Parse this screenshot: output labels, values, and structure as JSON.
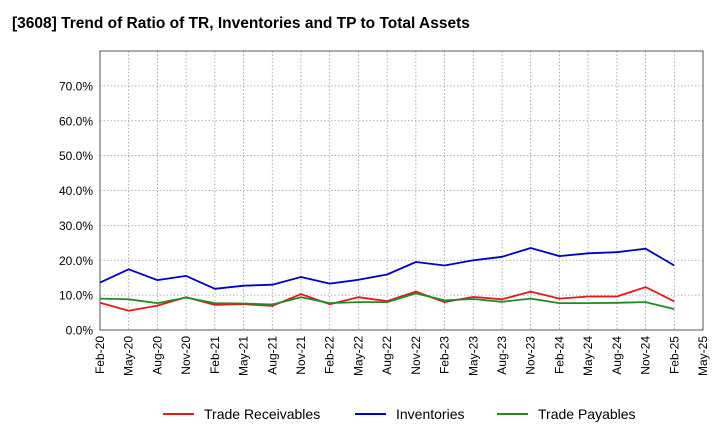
{
  "chart_data": {
    "type": "line",
    "title": "[3608]  Trend of Ratio of TR, Inventories and TP to Total Assets",
    "xlabel": "",
    "ylabel": "",
    "y_unit": "%",
    "ylim": [
      0,
      0.8
    ],
    "yticks": [
      0.0,
      0.1,
      0.2,
      0.3,
      0.4,
      0.5,
      0.6,
      0.7
    ],
    "ytick_labels": [
      "0.0%",
      "10.0%",
      "20.0%",
      "30.0%",
      "40.0%",
      "50.0%",
      "60.0%",
      "70.0%"
    ],
    "grid": true,
    "legend_position": "bottom",
    "x_tick_labels": [
      "Feb-20",
      "May-20",
      "Aug-20",
      "Nov-20",
      "Feb-21",
      "May-21",
      "Aug-21",
      "Nov-21",
      "Feb-22",
      "May-22",
      "Aug-22",
      "Nov-22",
      "Feb-23",
      "May-23",
      "Aug-23",
      "Nov-23",
      "Feb-24",
      "May-24",
      "Aug-24",
      "Nov-24",
      "Feb-25",
      "May-25"
    ],
    "x": [
      "Feb-20",
      "May-20",
      "Aug-20",
      "Nov-20",
      "Feb-21",
      "May-21",
      "Aug-21",
      "Nov-21",
      "Feb-22",
      "May-22",
      "Aug-22",
      "Nov-22",
      "Feb-23",
      "May-23",
      "Aug-23",
      "Nov-23",
      "Feb-24",
      "May-24",
      "Aug-24",
      "Nov-24",
      "Feb-25"
    ],
    "series": [
      {
        "name": "Trade Receivables",
        "color": "#e41a1c",
        "values": [
          0.078,
          0.055,
          0.07,
          0.094,
          0.072,
          0.074,
          0.069,
          0.103,
          0.074,
          0.094,
          0.083,
          0.11,
          0.08,
          0.095,
          0.088,
          0.11,
          0.09,
          0.096,
          0.096,
          0.123,
          0.082
        ]
      },
      {
        "name": "Inventories",
        "color": "#0000cc",
        "values": [
          0.136,
          0.174,
          0.143,
          0.155,
          0.118,
          0.127,
          0.13,
          0.152,
          0.133,
          0.144,
          0.159,
          0.195,
          0.185,
          0.2,
          0.21,
          0.235,
          0.212,
          0.22,
          0.223,
          0.233,
          0.185
        ]
      },
      {
        "name": "Trade Payables",
        "color": "#228b22",
        "values": [
          0.09,
          0.088,
          0.077,
          0.093,
          0.077,
          0.076,
          0.073,
          0.094,
          0.077,
          0.08,
          0.08,
          0.105,
          0.085,
          0.089,
          0.081,
          0.09,
          0.077,
          0.077,
          0.078,
          0.08,
          0.06
        ]
      }
    ]
  }
}
